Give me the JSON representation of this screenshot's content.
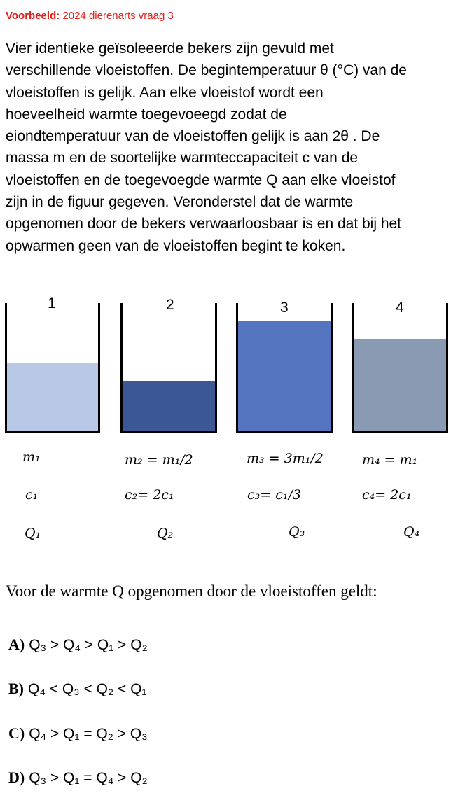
{
  "header": {
    "label": "Voorbeeld:",
    "title": "2024 dierenarts vraag 3"
  },
  "intro_lines": [
    "Vier identieke geïsoleeerde bekers zijn gevuld met",
    "verschillende vloeistoffen. De begintemperatuur θ (°C) van de",
    "vloeistoffen is gelijk. Aan elke vloeistof wordt een",
    "hoeveelheid warmte toegevoeegd zodat de",
    "eiondtemperatuur van de vloeistoffen gelijk is aan 2θ . De",
    "massa m en de soortelijke warmteccapaciteit c van de",
    "vloeistoffen en de toegevoegde warmte Q aan elke vloeistof",
    "zijn in de figuur gegeven. Veronderstel dat de warmte",
    "opgenomen door de bekers verwaarloosbaar is en dat bij het",
    "opwarmen geen van de vloeistoffen begint te koken."
  ],
  "beakers": [
    {
      "number": "1",
      "fill_fraction": 0.53,
      "color": "#b9c8e6",
      "mass": "m₁",
      "c": "c₁",
      "Q": "Q₁"
    },
    {
      "number": "2",
      "fill_fraction": 0.39,
      "color": "#3b5795",
      "mass": "m₂ = m₁/2",
      "c": "c₂= 2c₁",
      "Q": "Q₂"
    },
    {
      "number": "3",
      "fill_fraction": 0.86,
      "color": "#5474c0",
      "mass": "m₃ = 3m₁/2",
      "c": "c₃= c₁/3",
      "Q": "Q₃"
    },
    {
      "number": "4",
      "fill_fraction": 0.72,
      "color": "#8a9ab3",
      "mass": "m₄ = m₁",
      "c": "c₄= 2c₁",
      "Q": "Q₄"
    }
  ],
  "question": "Voor de warmte Q opgenomen door de vloeistoffen geldt:",
  "options": [
    {
      "letter": "A)",
      "text": "Q₃ > Q₄ > Q₁ > Q₂"
    },
    {
      "letter": "B)",
      "text": "Q₄ < Q₃ < Q₂ < Q₁"
    },
    {
      "letter": "C)",
      "text": "Q₄ > Q₁ = Q₂ > Q₃"
    },
    {
      "letter": "D)",
      "text": "Q₃ > Q₁ = Q₄ > Q₂"
    }
  ]
}
